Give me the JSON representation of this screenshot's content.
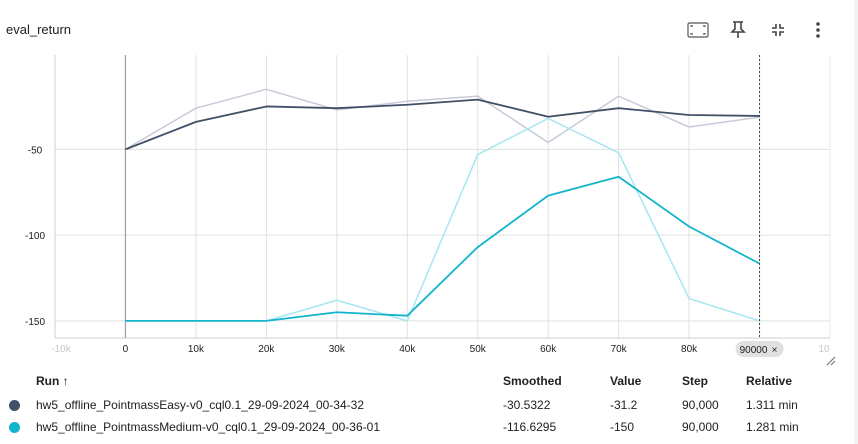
{
  "card": {
    "title": "eval_return",
    "tools": [
      {
        "name": "fit-domain-icon"
      },
      {
        "name": "pin-icon"
      },
      {
        "name": "collapse-icon"
      },
      {
        "name": "more-vert-icon"
      }
    ]
  },
  "colors": {
    "easy": "#425066",
    "easy_raw": "#c7cbd8",
    "medium": "#12b5cb",
    "medium_raw": "#a6e7f1",
    "grid": "#e0e0e0",
    "cursor": "#444444"
  },
  "chart_data": {
    "type": "line",
    "xlim": [
      -10000,
      100000
    ],
    "ylim": [
      -160,
      5
    ],
    "x_ticks": [
      "0",
      "10k",
      "20k",
      "30k",
      "40k",
      "50k",
      "60k",
      "70k",
      "80k"
    ],
    "y_ticks": [
      "-50",
      "-100",
      "-150"
    ],
    "faint_left_tick": "-10k",
    "faint_right_tick": "10",
    "cursor_label": "90000",
    "grid": true,
    "series": [
      {
        "name": "hw5_offline_PointmassEasy-v0_cql0.1_29-09-2024_00-34-32",
        "x": [
          0,
          10000,
          20000,
          30000,
          40000,
          50000,
          60000,
          70000,
          80000,
          90000
        ],
        "raw": [
          -50,
          -26,
          -15,
          -27,
          -22,
          -19,
          -46,
          -19,
          -37,
          -31.2
        ],
        "smoothed": [
          -50,
          -34,
          -25,
          -26,
          -24,
          -21,
          -31,
          -26,
          -30,
          -30.5322
        ]
      },
      {
        "name": "hw5_offline_PointmassMedium-v0_cql0.1_29-09-2024_00-36-01",
        "x": [
          0,
          10000,
          20000,
          30000,
          40000,
          50000,
          60000,
          70000,
          80000,
          90000
        ],
        "raw": [
          -150,
          -150,
          -150,
          -138,
          -150,
          -53,
          -32,
          -52,
          -137,
          -150
        ],
        "smoothed": [
          -150,
          -150,
          -150,
          -145,
          -147,
          -107,
          -77,
          -66,
          -95,
          -116.6295
        ]
      }
    ]
  },
  "table": {
    "headers": {
      "run": "Run ↑",
      "smoothed": "Smoothed",
      "value": "Value",
      "step": "Step",
      "relative": "Relative"
    },
    "rows": [
      {
        "run": "hw5_offline_PointmassEasy-v0_cql0.1_29-09-2024_00-34-32",
        "smoothed": "-30.5322",
        "value": "-31.2",
        "step": "90,000",
        "relative": "1.311 min",
        "color": "#425066"
      },
      {
        "run": "hw5_offline_PointmassMedium-v0_cql0.1_29-09-2024_00-36-01",
        "smoothed": "-116.6295",
        "value": "-150",
        "step": "90,000",
        "relative": "1.281 min",
        "color": "#12b5cb"
      }
    ]
  }
}
